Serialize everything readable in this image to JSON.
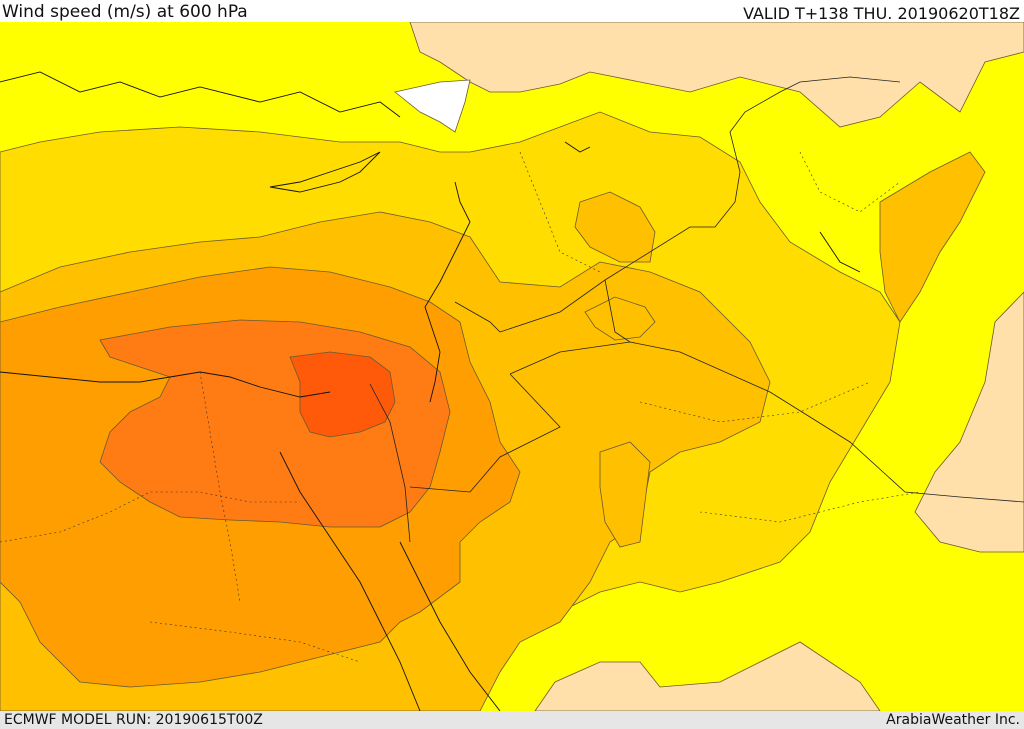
{
  "header": {
    "title": "Wind speed (m/s) at 600 hPa",
    "valid": "VALID T+138 THU. 20190620T18Z"
  },
  "footer": {
    "model_run": "ECMWF MODEL RUN: 20190615T00Z",
    "credit": "ArabiaWeather Inc."
  },
  "map": {
    "colors": {
      "level_0": "#ffffff",
      "level_1": "#ffe0aa",
      "level_2": "#ffff00",
      "level_3": "#ffdd00",
      "level_4": "#ffc000",
      "level_5": "#ff9e00",
      "level_6": "#ff7b14",
      "level_7": "#ff5a0a",
      "coast": "#111111",
      "contour": "#6a5a30"
    }
  }
}
